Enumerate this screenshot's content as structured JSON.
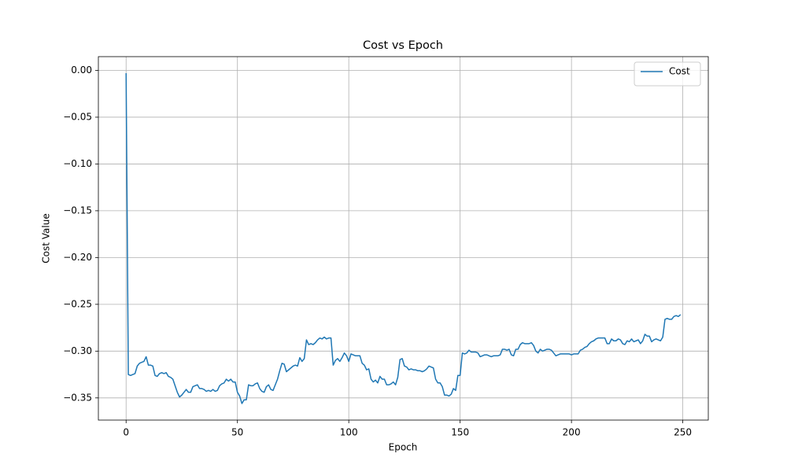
{
  "chart_data": {
    "type": "line",
    "title": "Cost vs Epoch",
    "xlabel": "Epoch",
    "ylabel": "Cost Value",
    "x": [
      0,
      1,
      2,
      3,
      4,
      5,
      6,
      7,
      8,
      9,
      10,
      11,
      12,
      13,
      14,
      15,
      16,
      17,
      18,
      19,
      20,
      21,
      22,
      23,
      24,
      25,
      26,
      27,
      28,
      29,
      30,
      31,
      32,
      33,
      34,
      35,
      36,
      37,
      38,
      39,
      40,
      41,
      42,
      43,
      44,
      45,
      46,
      47,
      48,
      49,
      50,
      51,
      52,
      53,
      54,
      55,
      56,
      57,
      58,
      59,
      60,
      61,
      62,
      63,
      64,
      65,
      66,
      67,
      68,
      69,
      70,
      71,
      72,
      73,
      74,
      75,
      76,
      77,
      78,
      79,
      80,
      81,
      82,
      83,
      84,
      85,
      86,
      87,
      88,
      89,
      90,
      91,
      92,
      93,
      94,
      95,
      96,
      97,
      98,
      99,
      100,
      101,
      102,
      103,
      104,
      105,
      106,
      107,
      108,
      109,
      110,
      111,
      112,
      113,
      114,
      115,
      116,
      117,
      118,
      119,
      120,
      121,
      122,
      123,
      124,
      125,
      126,
      127,
      128,
      129,
      130,
      131,
      132,
      133,
      134,
      135,
      136,
      137,
      138,
      139,
      140,
      141,
      142,
      143,
      144,
      145,
      146,
      147,
      148,
      149,
      150,
      151,
      152,
      153,
      154,
      155,
      156,
      157,
      158,
      159,
      160,
      161,
      162,
      163,
      164,
      165,
      166,
      167,
      168,
      169,
      170,
      171,
      172,
      173,
      174,
      175,
      176,
      177,
      178,
      179,
      180,
      181,
      182,
      183,
      184,
      185,
      186,
      187,
      188,
      189,
      190,
      191,
      192,
      193,
      194,
      195,
      196,
      197,
      198,
      199,
      200,
      201,
      202,
      203,
      204,
      205,
      206,
      207,
      208,
      209,
      210,
      211,
      212,
      213,
      214,
      215,
      216,
      217,
      218,
      219,
      220,
      221,
      222,
      223,
      224,
      225,
      226,
      227,
      228,
      229,
      230,
      231,
      232,
      233,
      234,
      235,
      236,
      237,
      238,
      239,
      240,
      241,
      242,
      243,
      244,
      245,
      246,
      247,
      248,
      249
    ],
    "series": [
      {
        "name": "Cost",
        "color": "#1f77b4",
        "values": [
          -0.003,
          -0.325,
          -0.326,
          -0.325,
          -0.324,
          -0.316,
          -0.313,
          -0.312,
          -0.311,
          -0.306,
          -0.315,
          -0.315,
          -0.316,
          -0.326,
          -0.327,
          -0.324,
          -0.323,
          -0.324,
          -0.323,
          -0.327,
          -0.328,
          -0.33,
          -0.337,
          -0.344,
          -0.349,
          -0.347,
          -0.344,
          -0.341,
          -0.344,
          -0.344,
          -0.338,
          -0.337,
          -0.336,
          -0.34,
          -0.34,
          -0.341,
          -0.343,
          -0.342,
          -0.343,
          -0.341,
          -0.343,
          -0.342,
          -0.337,
          -0.335,
          -0.334,
          -0.33,
          -0.332,
          -0.33,
          -0.333,
          -0.333,
          -0.344,
          -0.348,
          -0.356,
          -0.352,
          -0.352,
          -0.336,
          -0.337,
          -0.337,
          -0.335,
          -0.334,
          -0.34,
          -0.343,
          -0.344,
          -0.338,
          -0.336,
          -0.341,
          -0.342,
          -0.336,
          -0.33,
          -0.321,
          -0.313,
          -0.314,
          -0.322,
          -0.32,
          -0.318,
          -0.316,
          -0.315,
          -0.316,
          -0.307,
          -0.311,
          -0.308,
          -0.288,
          -0.293,
          -0.292,
          -0.293,
          -0.291,
          -0.288,
          -0.286,
          -0.287,
          -0.285,
          -0.287,
          -0.286,
          -0.286,
          -0.315,
          -0.31,
          -0.308,
          -0.311,
          -0.307,
          -0.302,
          -0.305,
          -0.311,
          -0.303,
          -0.304,
          -0.305,
          -0.305,
          -0.305,
          -0.313,
          -0.315,
          -0.32,
          -0.319,
          -0.33,
          -0.333,
          -0.331,
          -0.334,
          -0.327,
          -0.33,
          -0.33,
          -0.336,
          -0.336,
          -0.335,
          -0.333,
          -0.336,
          -0.328,
          -0.309,
          -0.308,
          -0.316,
          -0.317,
          -0.32,
          -0.319,
          -0.32,
          -0.32,
          -0.321,
          -0.321,
          -0.322,
          -0.321,
          -0.319,
          -0.316,
          -0.317,
          -0.318,
          -0.33,
          -0.334,
          -0.334,
          -0.338,
          -0.347,
          -0.347,
          -0.348,
          -0.346,
          -0.34,
          -0.342,
          -0.326,
          -0.326,
          -0.302,
          -0.303,
          -0.302,
          -0.299,
          -0.301,
          -0.301,
          -0.301,
          -0.302,
          -0.306,
          -0.305,
          -0.304,
          -0.304,
          -0.305,
          -0.306,
          -0.305,
          -0.305,
          -0.305,
          -0.304,
          -0.298,
          -0.298,
          -0.299,
          -0.298,
          -0.304,
          -0.305,
          -0.298,
          -0.298,
          -0.293,
          -0.291,
          -0.292,
          -0.292,
          -0.292,
          -0.291,
          -0.294,
          -0.3,
          -0.302,
          -0.298,
          -0.3,
          -0.299,
          -0.298,
          -0.298,
          -0.299,
          -0.302,
          -0.305,
          -0.304,
          -0.303,
          -0.303,
          -0.303,
          -0.303,
          -0.303,
          -0.304,
          -0.303,
          -0.303,
          -0.303,
          -0.299,
          -0.298,
          -0.296,
          -0.295,
          -0.292,
          -0.29,
          -0.289,
          -0.287,
          -0.286,
          -0.286,
          -0.286,
          -0.286,
          -0.292,
          -0.292,
          -0.287,
          -0.289,
          -0.289,
          -0.287,
          -0.288,
          -0.292,
          -0.293,
          -0.289,
          -0.29,
          -0.287,
          -0.29,
          -0.289,
          -0.288,
          -0.292,
          -0.289,
          -0.282,
          -0.284,
          -0.284,
          -0.29,
          -0.288,
          -0.287,
          -0.288,
          -0.289,
          -0.285,
          -0.266,
          -0.265,
          -0.266,
          -0.266,
          -0.263,
          -0.262,
          -0.263,
          -0.261
        ]
      }
    ],
    "xlim": [
      -12.45,
      261.45
    ],
    "xticks": [
      0,
      50,
      100,
      150,
      200,
      250
    ],
    "ylim": [
      -0.3737,
      0.0147
    ],
    "yticks": [
      {
        "value": -0.35,
        "label": "−0.35"
      },
      {
        "value": -0.3,
        "label": "−0.30"
      },
      {
        "value": -0.25,
        "label": "−0.25"
      },
      {
        "value": -0.2,
        "label": "−0.20"
      },
      {
        "value": -0.15,
        "label": "−0.15"
      },
      {
        "value": -0.1,
        "label": "−0.10"
      },
      {
        "value": -0.05,
        "label": "−0.05"
      },
      {
        "value": 0,
        "label": "0.00"
      }
    ],
    "grid": true,
    "legend": "upper right"
  }
}
